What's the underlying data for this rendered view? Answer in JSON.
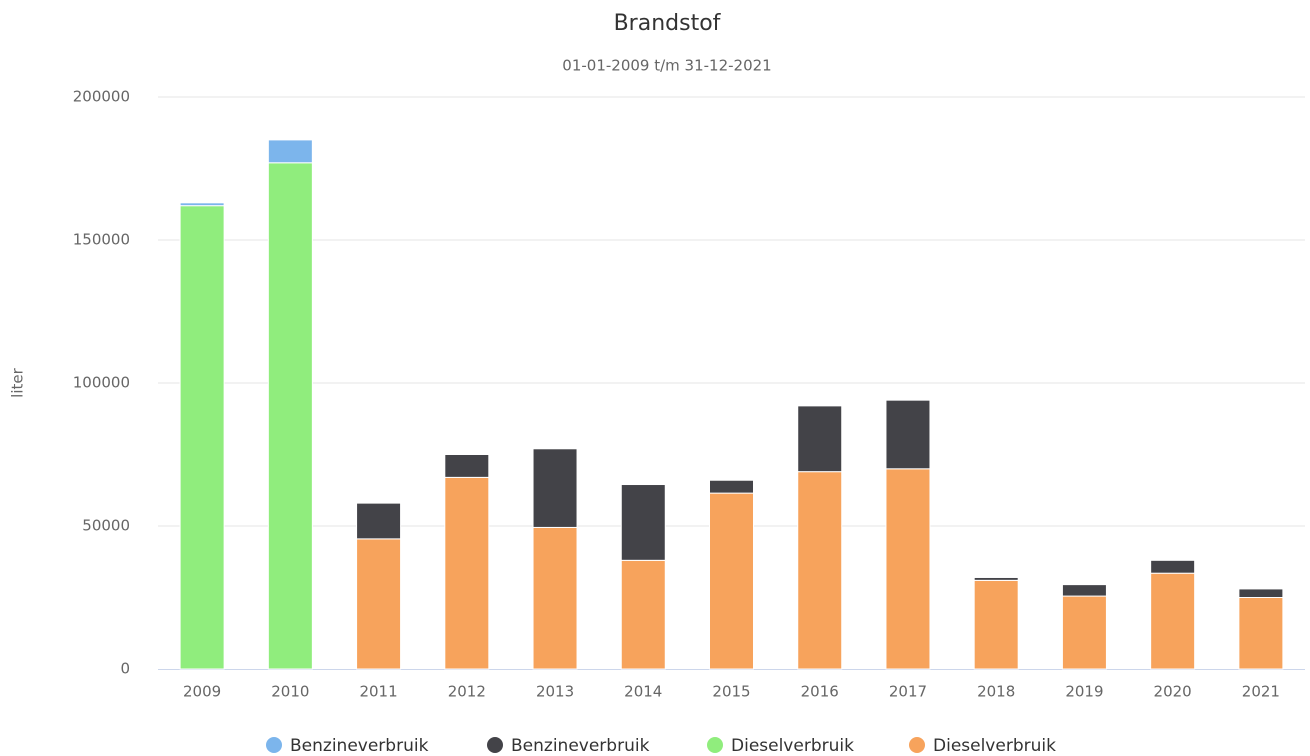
{
  "chart_data": {
    "type": "stacked_bar",
    "title": "Brandstof",
    "subtitle": "01-01-2009 t/m 31-12-2021",
    "y_label": "liter",
    "categories": [
      "2009",
      "2010",
      "2011",
      "2012",
      "2013",
      "2014",
      "2015",
      "2016",
      "2017",
      "2018",
      "2019",
      "2020",
      "2021"
    ],
    "series": [
      {
        "name": "Benzineverbruik",
        "color": "#7cb5ec",
        "values": [
          1000,
          8000,
          null,
          null,
          null,
          null,
          null,
          null,
          null,
          null,
          null,
          null,
          null
        ]
      },
      {
        "name": "Benzineverbruik",
        "color": "#434348",
        "values": [
          null,
          null,
          12500,
          8000,
          27500,
          26500,
          4500,
          23000,
          24000,
          1000,
          4000,
          4500,
          3000
        ]
      },
      {
        "name": "Dieselverbruik",
        "color": "#90ed7d",
        "values": [
          162000,
          177000,
          null,
          null,
          null,
          null,
          null,
          null,
          null,
          null,
          null,
          null,
          null
        ]
      },
      {
        "name": "Dieselverbruik",
        "color": "#f7a35c",
        "values": [
          null,
          null,
          45500,
          67000,
          49500,
          38000,
          61500,
          69000,
          70000,
          31000,
          25500,
          33500,
          25000
        ]
      }
    ],
    "ylim": [
      0,
      200000
    ],
    "yticks": [
      0,
      50000,
      100000,
      150000,
      200000
    ],
    "grid": true,
    "legend": "bottom"
  }
}
